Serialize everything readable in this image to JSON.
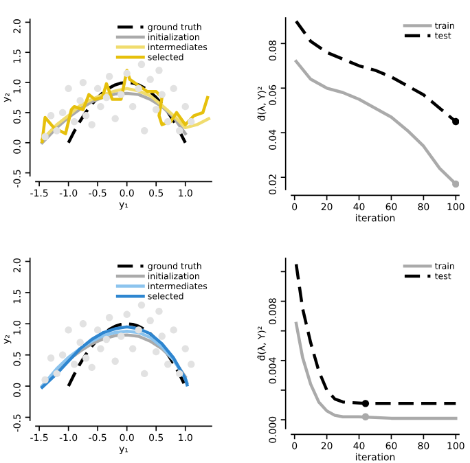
{
  "chart_data": [
    {
      "type": "line",
      "xlabel": "y₁",
      "ylabel": "y₂",
      "xlim": [
        -1.56,
        1.45
      ],
      "ylim": [
        -0.55,
        2.05
      ],
      "xticks": [
        -1.5,
        {
          "value": -1.0,
          "label": "-1.0"
        },
        -0.5,
        {
          "value": 0.0,
          "label": "0.0"
        },
        0.5,
        {
          "value": 1.0,
          "label": "1.0"
        }
      ],
      "yticks": [
        -0.5,
        {
          "value": 0.0,
          "label": "0.0"
        },
        0.5,
        {
          "value": 1.0,
          "label": "1.0"
        },
        1.5,
        {
          "value": 2.0,
          "label": "2.0"
        }
      ],
      "legend": "top right",
      "grid": false,
      "series": [
        {
          "type": "scatter",
          "color": "#e2e2e2",
          "marker": "circle",
          "x": [
            -1.4,
            -1.3,
            -1.2,
            -1.1,
            -1.0,
            -0.9,
            -0.8,
            -0.75,
            -0.6,
            -0.5,
            -0.45,
            -0.3,
            -0.2,
            -0.1,
            0.0,
            0.1,
            0.2,
            0.3,
            0.4,
            0.5,
            0.6,
            0.7,
            0.8,
            0.9,
            1.0,
            1.1,
            -0.7,
            0.25,
            -0.35,
            0.55
          ],
          "values": [
            0.1,
            0.45,
            0.2,
            0.5,
            0.9,
            0.35,
            0.7,
            1.0,
            0.3,
            0.9,
            0.6,
            1.1,
            0.4,
            0.8,
            1.15,
            0.6,
            0.9,
            0.2,
            1.05,
            0.55,
            0.8,
            0.35,
            0.9,
            0.2,
            0.6,
            0.35,
            0.45,
            1.3,
            0.75,
            1.2
          ]
        },
        {
          "name": "ground truth",
          "color": "#000000",
          "line_style": "dashed",
          "x": [
            -1.0,
            -0.9,
            -0.8,
            -0.7,
            -0.6,
            -0.5,
            -0.4,
            -0.3,
            -0.2,
            -0.1,
            0.0,
            0.1,
            0.2,
            0.3,
            0.4,
            0.5,
            0.6,
            0.7,
            0.8,
            0.9,
            1.0
          ],
          "values": [
            0.0,
            0.19,
            0.36,
            0.51,
            0.64,
            0.75,
            0.84,
            0.91,
            0.96,
            0.99,
            1.0,
            0.99,
            0.96,
            0.91,
            0.84,
            0.75,
            0.64,
            0.51,
            0.36,
            0.19,
            0.0
          ]
        },
        {
          "name": "initialization",
          "color": "#aaaaaa",
          "line_style": "solid",
          "x": [
            -1.45,
            -1.2,
            -1.0,
            -0.8,
            -0.6,
            -0.4,
            -0.2,
            0.0,
            0.2,
            0.4,
            0.6,
            0.8,
            1.0
          ],
          "values": [
            0.0,
            0.25,
            0.42,
            0.56,
            0.68,
            0.76,
            0.81,
            0.82,
            0.8,
            0.72,
            0.6,
            0.42,
            0.15
          ]
        },
        {
          "name": "intermediates",
          "color": "#f0dc6e",
          "line_style": "solid",
          "x": [
            -1.45,
            -1.2,
            -1.0,
            -0.8,
            -0.6,
            -0.4,
            -0.2,
            0.0,
            0.2,
            0.4,
            0.6,
            0.8,
            1.0,
            1.2,
            1.4
          ],
          "values": [
            0.05,
            0.3,
            0.45,
            0.62,
            0.72,
            0.8,
            0.86,
            0.9,
            0.86,
            0.78,
            0.62,
            0.45,
            0.25,
            0.3,
            0.4
          ]
        },
        {
          "name": "selected",
          "color": "#e6c00c",
          "line_style": "solid",
          "x": [
            -1.45,
            -1.4,
            -1.25,
            -1.05,
            -0.95,
            -0.9,
            -0.75,
            -0.65,
            -0.55,
            -0.42,
            -0.35,
            -0.25,
            -0.1,
            0.0,
            0.05,
            0.2,
            0.35,
            0.5,
            0.6,
            0.55,
            0.6,
            0.75,
            0.85,
            1.0,
            1.15,
            1.3,
            1.38
          ],
          "values": [
            0.02,
            0.42,
            0.25,
            0.15,
            0.55,
            0.6,
            0.55,
            0.8,
            0.72,
            0.75,
            0.98,
            0.72,
            0.72,
            1.2,
            1.05,
            0.95,
            0.85,
            0.85,
            0.75,
            0.45,
            0.3,
            0.35,
            0.5,
            0.3,
            0.45,
            0.5,
            0.75
          ]
        }
      ]
    },
    {
      "type": "line",
      "xlabel": "iteration",
      "ylabel": "d̂(λ, Y)²",
      "xlim": [
        -2,
        102
      ],
      "ylim": [
        0.0145,
        0.0915
      ],
      "xticks": [
        0,
        20,
        40,
        60,
        80,
        100
      ],
      "yticks": [
        0.02,
        0.04,
        0.06,
        0.08
      ],
      "legend": "top right",
      "grid": false,
      "series": [
        {
          "name": "train",
          "color": "#aaaaaa",
          "line_style": "solid",
          "x": [
            1,
            10,
            20,
            30,
            40,
            50,
            60,
            70,
            80,
            90,
            100
          ],
          "values": [
            0.072,
            0.064,
            0.06,
            0.058,
            0.055,
            0.051,
            0.047,
            0.041,
            0.034,
            0.024,
            0.017
          ]
        },
        {
          "name": "test",
          "color": "#000000",
          "line_style": "dashed",
          "x": [
            1,
            10,
            20,
            30,
            40,
            50,
            60,
            70,
            80,
            90,
            100
          ],
          "values": [
            0.09,
            0.081,
            0.076,
            0.073,
            0.07,
            0.068,
            0.065,
            0.061,
            0.057,
            0.051,
            0.045
          ]
        },
        {
          "type": "scatter",
          "color": "#aaaaaa",
          "marker": "circle",
          "x": [
            100
          ],
          "values": [
            0.017
          ]
        },
        {
          "type": "scatter",
          "color": "#000000",
          "marker": "circle",
          "x": [
            100
          ],
          "values": [
            0.045
          ]
        }
      ]
    },
    {
      "type": "line",
      "xlabel": "y₁",
      "ylabel": "y₂",
      "xlim": [
        -1.56,
        1.45
      ],
      "ylim": [
        -0.55,
        2.05
      ],
      "xticks": [
        -1.5,
        {
          "value": -1.0,
          "label": "-1.0"
        },
        -0.5,
        {
          "value": 0.0,
          "label": "0.0"
        },
        0.5,
        {
          "value": 1.0,
          "label": "1.0"
        }
      ],
      "yticks": [
        -0.5,
        {
          "value": 0.0,
          "label": "0.0"
        },
        0.5,
        {
          "value": 1.0,
          "label": "1.0"
        },
        1.5,
        {
          "value": 2.0,
          "label": "2.0"
        }
      ],
      "legend": "top right",
      "grid": false,
      "series": [
        {
          "type": "scatter",
          "color": "#e2e2e2",
          "marker": "circle",
          "x": [
            -1.4,
            -1.3,
            -1.2,
            -1.1,
            -1.0,
            -0.9,
            -0.8,
            -0.75,
            -0.6,
            -0.5,
            -0.45,
            -0.3,
            -0.2,
            -0.1,
            0.0,
            0.1,
            0.2,
            0.3,
            0.4,
            0.5,
            0.6,
            0.7,
            0.8,
            0.9,
            1.0,
            1.1,
            -0.7,
            0.25,
            -0.35,
            0.55
          ],
          "values": [
            0.1,
            0.45,
            0.2,
            0.5,
            0.9,
            0.35,
            0.7,
            1.0,
            0.3,
            0.9,
            0.6,
            1.1,
            0.4,
            0.8,
            1.15,
            0.6,
            0.9,
            0.2,
            1.05,
            0.55,
            0.8,
            0.35,
            0.9,
            0.2,
            0.6,
            0.35,
            0.45,
            1.3,
            0.75,
            1.2
          ]
        },
        {
          "name": "ground truth",
          "color": "#000000",
          "line_style": "dashed",
          "x": [
            -1.0,
            -0.9,
            -0.8,
            -0.7,
            -0.6,
            -0.5,
            -0.4,
            -0.3,
            -0.2,
            -0.1,
            0.0,
            0.1,
            0.2,
            0.3,
            0.4,
            0.5,
            0.6,
            0.7,
            0.8,
            0.9,
            1.0
          ],
          "values": [
            0.0,
            0.19,
            0.36,
            0.51,
            0.64,
            0.75,
            0.84,
            0.91,
            0.96,
            0.99,
            1.0,
            0.99,
            0.96,
            0.91,
            0.84,
            0.75,
            0.64,
            0.51,
            0.36,
            0.19,
            0.0
          ]
        },
        {
          "name": "initialization",
          "color": "#aaaaaa",
          "line_style": "solid",
          "x": [
            -1.45,
            -1.2,
            -1.0,
            -0.8,
            -0.6,
            -0.4,
            -0.2,
            0.0,
            0.2,
            0.4,
            0.6,
            0.8,
            1.0
          ],
          "values": [
            0.0,
            0.25,
            0.42,
            0.56,
            0.68,
            0.76,
            0.81,
            0.82,
            0.8,
            0.72,
            0.6,
            0.42,
            0.15
          ]
        },
        {
          "name": "intermediates",
          "color": "#8cc4ee",
          "line_style": "solid",
          "x": [
            -1.45,
            -1.2,
            -1.0,
            -0.8,
            -0.6,
            -0.4,
            -0.2,
            0.0,
            0.2,
            0.4,
            0.6,
            0.8,
            1.0,
            1.03
          ],
          "values": [
            0.0,
            0.28,
            0.46,
            0.6,
            0.72,
            0.81,
            0.86,
            0.88,
            0.86,
            0.78,
            0.63,
            0.42,
            0.12,
            0.05
          ]
        },
        {
          "name": "selected",
          "color": "#2e86d0",
          "line_style": "solid",
          "x": [
            -1.45,
            -1.2,
            -1.0,
            -0.8,
            -0.6,
            -0.4,
            -0.2,
            0.0,
            0.2,
            0.4,
            0.6,
            0.8,
            1.0,
            1.03
          ],
          "values": [
            -0.02,
            0.2,
            0.4,
            0.6,
            0.75,
            0.86,
            0.92,
            0.95,
            0.92,
            0.84,
            0.68,
            0.45,
            0.12,
            0.02
          ]
        }
      ]
    },
    {
      "type": "line",
      "xlabel": "iteration",
      "ylabel": "d̂(λ, Y)²",
      "xlim": [
        -2,
        102
      ],
      "ylim": [
        -0.0006,
        0.0109
      ],
      "xticks": [
        0,
        20,
        40,
        60,
        80,
        100
      ],
      "yticks": [
        {
          "value": 0.0,
          "label": "0.000"
        },
        {
          "value": 0.002,
          "label": null
        },
        {
          "value": 0.004,
          "label": "0.004"
        },
        {
          "value": 0.006,
          "label": null
        },
        {
          "value": 0.008,
          "label": "0.008"
        },
        {
          "value": 0.01,
          "label": null
        }
      ],
      "legend": "top right",
      "grid": false,
      "series": [
        {
          "name": "train",
          "color": "#aaaaaa",
          "line_style": "solid",
          "x": [
            1,
            5,
            10,
            15,
            20,
            25,
            30,
            40,
            60,
            100
          ],
          "values": [
            0.0065,
            0.0042,
            0.0024,
            0.0012,
            0.0006,
            0.0003,
            0.0002,
            0.0002,
            0.0001,
            0.0001
          ]
        },
        {
          "name": "test",
          "color": "#000000",
          "line_style": "dashed",
          "x": [
            1,
            5,
            10,
            15,
            20,
            25,
            30,
            44,
            60,
            100
          ],
          "values": [
            0.0105,
            0.0075,
            0.0052,
            0.0033,
            0.002,
            0.0014,
            0.0012,
            0.0011,
            0.0011,
            0.0011
          ]
        },
        {
          "type": "scatter",
          "color": "#aaaaaa",
          "marker": "circle",
          "x": [
            44
          ],
          "values": [
            0.0002
          ]
        },
        {
          "type": "scatter",
          "color": "#000000",
          "marker": "circle",
          "x": [
            44
          ],
          "values": [
            0.0011
          ]
        }
      ]
    }
  ]
}
